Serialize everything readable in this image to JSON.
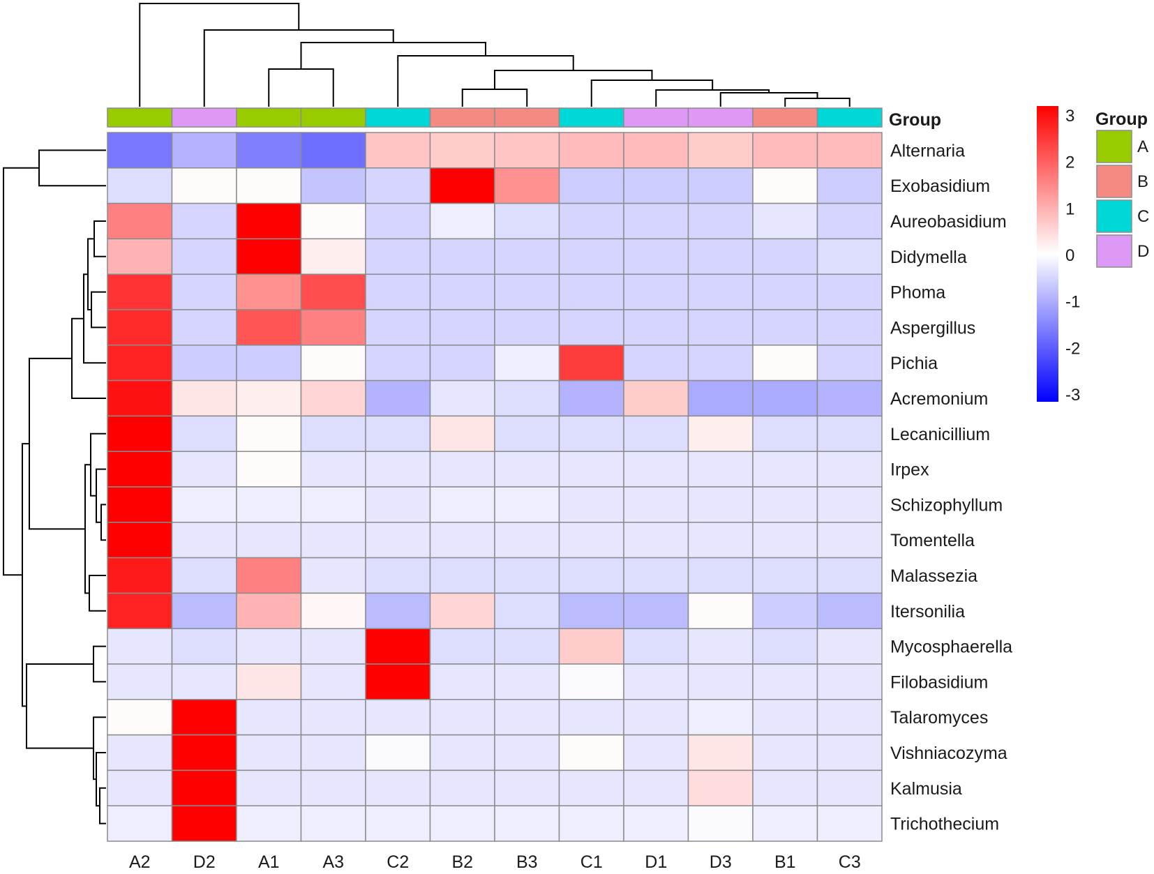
{
  "chart_data": {
    "type": "heatmap",
    "columns": [
      "A2",
      "D2",
      "A1",
      "A3",
      "C2",
      "B2",
      "B3",
      "C1",
      "D1",
      "D3",
      "B1",
      "C3"
    ],
    "column_groups": [
      "A",
      "D",
      "A",
      "A",
      "C",
      "B",
      "B",
      "C",
      "D",
      "D",
      "B",
      "C"
    ],
    "rows": [
      "Alternaria",
      "Exobasidium",
      "Aureobasidium",
      "Didymella",
      "Phoma",
      "Aspergillus",
      "Pichia",
      "Acremonium",
      "Lecanicillium",
      "Irpex",
      "Schizophyllum",
      "Tomentella",
      "Malassezia",
      "Itersonilia",
      "Mycosphaerella",
      "Filobasidium",
      "Talaromyces",
      "Vishniacozyma",
      "Kalmusia",
      "Trichothecium"
    ],
    "values": [
      [
        -1.6,
        -0.9,
        -1.5,
        -1.7,
        0.7,
        0.6,
        0.7,
        0.8,
        0.8,
        0.6,
        0.8,
        0.8
      ],
      [
        -0.4,
        0.05,
        0.05,
        -0.7,
        -0.5,
        3.0,
        1.3,
        -0.6,
        -0.6,
        -0.6,
        0.05,
        -0.6
      ],
      [
        1.5,
        -0.5,
        3.0,
        0.05,
        -0.5,
        -0.2,
        -0.4,
        -0.5,
        -0.5,
        -0.5,
        -0.3,
        -0.5
      ],
      [
        0.9,
        -0.5,
        3.0,
        0.2,
        -0.5,
        -0.5,
        -0.5,
        -0.5,
        -0.5,
        -0.5,
        -0.5,
        -0.4
      ],
      [
        2.4,
        -0.5,
        1.3,
        2.1,
        -0.5,
        -0.5,
        -0.5,
        -0.5,
        -0.5,
        -0.5,
        -0.5,
        -0.5
      ],
      [
        2.5,
        -0.5,
        2.0,
        1.5,
        -0.5,
        -0.5,
        -0.5,
        -0.5,
        -0.5,
        -0.5,
        -0.5,
        -0.5
      ],
      [
        2.6,
        -0.6,
        -0.6,
        0.05,
        -0.5,
        -0.5,
        -0.2,
        2.3,
        -0.5,
        -0.5,
        0.05,
        -0.5
      ],
      [
        2.8,
        0.3,
        0.2,
        0.5,
        -0.9,
        -0.3,
        -0.4,
        -0.9,
        0.6,
        -1.0,
        -1.0,
        -0.9
      ],
      [
        3.0,
        -0.4,
        0.05,
        -0.4,
        -0.4,
        0.3,
        -0.4,
        -0.4,
        -0.4,
        0.2,
        -0.4,
        -0.4
      ],
      [
        3.0,
        -0.3,
        0.05,
        -0.3,
        -0.3,
        -0.3,
        -0.3,
        -0.3,
        -0.3,
        -0.3,
        -0.3,
        -0.3
      ],
      [
        3.0,
        -0.2,
        -0.2,
        -0.2,
        -0.3,
        -0.2,
        -0.2,
        -0.3,
        -0.3,
        -0.3,
        -0.3,
        -0.3
      ],
      [
        3.0,
        -0.3,
        -0.3,
        -0.3,
        -0.3,
        -0.3,
        -0.3,
        -0.3,
        -0.3,
        -0.3,
        -0.3,
        -0.3
      ],
      [
        2.7,
        -0.4,
        1.5,
        -0.3,
        -0.4,
        -0.4,
        -0.4,
        -0.4,
        -0.4,
        -0.4,
        -0.4,
        -0.4
      ],
      [
        2.6,
        -0.8,
        0.9,
        0.1,
        -0.8,
        0.5,
        -0.4,
        -0.8,
        -0.8,
        0.05,
        -0.6,
        -0.8
      ],
      [
        -0.3,
        -0.4,
        -0.3,
        -0.3,
        3.0,
        -0.4,
        -0.4,
        0.6,
        -0.4,
        -0.3,
        -0.4,
        -0.3
      ],
      [
        -0.3,
        -0.3,
        0.3,
        -0.3,
        3.0,
        -0.3,
        -0.3,
        -0.05,
        -0.3,
        -0.3,
        -0.3,
        -0.3
      ],
      [
        0.05,
        3.0,
        -0.3,
        -0.3,
        -0.3,
        -0.3,
        -0.3,
        -0.3,
        -0.3,
        -0.2,
        -0.3,
        -0.3
      ],
      [
        -0.3,
        3.0,
        -0.3,
        -0.3,
        -0.05,
        -0.3,
        -0.3,
        0.05,
        -0.3,
        0.3,
        -0.3,
        -0.3
      ],
      [
        -0.3,
        3.0,
        -0.3,
        -0.3,
        -0.3,
        -0.3,
        -0.3,
        -0.3,
        -0.3,
        0.4,
        -0.3,
        -0.3
      ],
      [
        -0.2,
        3.0,
        -0.2,
        -0.2,
        -0.2,
        -0.2,
        -0.2,
        -0.2,
        -0.2,
        -0.05,
        -0.2,
        -0.2
      ]
    ],
    "color_scale": {
      "min": -3,
      "max": 3,
      "low_color": "#0000ff",
      "mid_color": "#ffffff",
      "high_color": "#ff0000",
      "ticks": [
        "3",
        "2",
        "1",
        "0",
        "-1",
        "-2",
        "-3"
      ]
    },
    "group_annotation": {
      "title": "Group",
      "legend_title": "Group",
      "levels": [
        "A",
        "B",
        "C",
        "D"
      ],
      "colors": {
        "A": "#99cc00",
        "B": "#f58a83",
        "C": "#00d8d8",
        "D": "#dd99f5"
      }
    },
    "row_dendrogram": true,
    "column_dendrogram": true
  }
}
